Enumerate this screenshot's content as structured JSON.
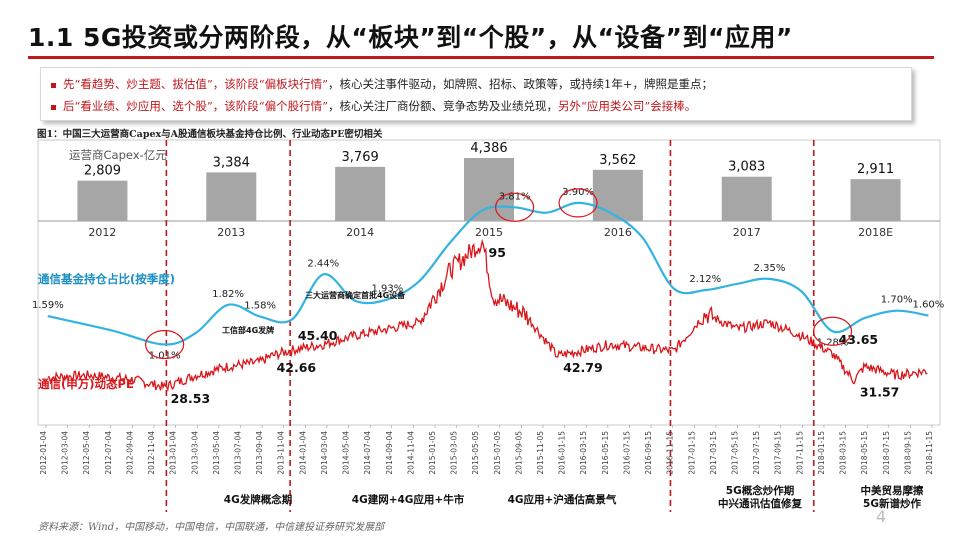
{
  "title": "1.1 5G投资或分两阶段，从“板块”到“个股”，从“设备”到“应用”",
  "bullets": [
    {
      "pre": "先“看趋势、炒主题、拔估值”，该阶段“偏板块行情”",
      "post": "，核心关注事件驱动，如牌照、招标、政策等，或持续1年+，牌照是重点；"
    },
    {
      "pre": "后“看业绩、炒应用、选个股”，该阶段“偏个股行情”",
      "post": "，核心关注厂商份额、竞争态势及业绩兑现，",
      "tail": "另外“应用类公司”会接棒。"
    }
  ],
  "figure_caption": "图1：中国三大运营商Capex与A股通信板块基金持仓比例、行业动态PE密切相关",
  "source_note": "资料来源：Wind，中国移动，中国电信，中国联通，中信建投证券研究发展部",
  "page_number": "4",
  "colors": {
    "accent": "#c0161c",
    "bar": "#a6a6a6",
    "holding_line": "#33b4e0",
    "pe_line": "#d9161b",
    "divider": "#c0161c"
  },
  "chart_data": [
    {
      "type": "bar",
      "ylabel": "运营商Capex-亿元",
      "categories": [
        "2012",
        "2013",
        "2014",
        "2015",
        "2016",
        "2017",
        "2018E"
      ],
      "values": [
        2809,
        3384,
        3769,
        4386,
        3562,
        3083,
        2911
      ],
      "value_labels": [
        "2,809",
        "3,384",
        "3,769",
        "4,386",
        "3,562",
        "3,083",
        "2,911"
      ]
    },
    {
      "type": "line",
      "series": [
        {
          "name": "通信基金持仓占比(按季度)",
          "x": [
            "2012-01",
            "2012-07",
            "2012-12",
            "2013-03",
            "2013-06",
            "2013-09",
            "2013-12",
            "2014-03",
            "2014-06",
            "2014-09",
            "2014-12",
            "2015-03",
            "2015-06",
            "2015-09",
            "2015-12",
            "2016-03",
            "2016-06",
            "2016-09",
            "2016-12",
            "2017-03",
            "2017-06",
            "2017-09",
            "2017-12",
            "2018-03",
            "2018-06",
            "2018-09",
            "2018-12"
          ],
          "values": [
            1.59,
            1.3,
            1.01,
            1.25,
            1.82,
            1.58,
            1.52,
            2.44,
            1.9,
            1.93,
            2.3,
            3.1,
            3.75,
            3.81,
            3.7,
            3.9,
            3.7,
            3.2,
            2.15,
            2.12,
            2.25,
            2.35,
            2.1,
            1.28,
            1.55,
            1.7,
            1.6
          ],
          "point_labels": [
            {
              "x": "2012-01",
              "text": "1.59%"
            },
            {
              "x": "2012-12",
              "text": "1.01%"
            },
            {
              "x": "2013-06",
              "text": "1.82%"
            },
            {
              "x": "2013-09",
              "text": "1.58%"
            },
            {
              "x": "2014-03",
              "text": "2.44%"
            },
            {
              "x": "2014-09",
              "text": "1.93%"
            },
            {
              "x": "2015-09",
              "text": "3.81%"
            },
            {
              "x": "2016-03",
              "text": "3.90%"
            },
            {
              "x": "2017-03",
              "text": "2.12%"
            },
            {
              "x": "2017-09",
              "text": "2.35%"
            },
            {
              "x": "2018-03",
              "text": "1.28%"
            },
            {
              "x": "2018-09",
              "text": "1.70%"
            },
            {
              "x": "2018-12",
              "text": "1.60%"
            }
          ]
        },
        {
          "name": "通信(申万)动态PE",
          "x": [
            "2012-01",
            "2012-05",
            "2012-09",
            "2012-12",
            "2013-03",
            "2013-06",
            "2013-09",
            "2013-10",
            "2013-12",
            "2014-03",
            "2014-06",
            "2014-09",
            "2014-12",
            "2015-03",
            "2015-06",
            "2015-07",
            "2015-10",
            "2016-01",
            "2016-06",
            "2016-12",
            "2017-03",
            "2017-06",
            "2017-09",
            "2017-12",
            "2018-03",
            "2018-05",
            "2018-06",
            "2018-09",
            "2018-12"
          ],
          "values": [
            33,
            34,
            32,
            28.53,
            34,
            38,
            40,
            42.66,
            45.4,
            48,
            52,
            55,
            58,
            82,
            95,
            70,
            62,
            42.79,
            48,
            45,
            62,
            55,
            58,
            52,
            43.65,
            31.57,
            38,
            34,
            36
          ],
          "point_labels": [
            {
              "x": "2012-12",
              "text": "28.53"
            },
            {
              "x": "2013-10",
              "text": "42.66"
            },
            {
              "x": "2013-12",
              "text": "45.40"
            },
            {
              "x": "2015-06",
              "text": "95"
            },
            {
              "x": "2016-01",
              "text": "42.79"
            },
            {
              "x": "2018-03",
              "text": "43.65"
            },
            {
              "x": "2018-05",
              "text": "31.57"
            }
          ]
        }
      ],
      "x_tick_labels": [
        "2012-01-04",
        "2012-03-04",
        "2012-05-04",
        "2012-07-04",
        "2012-09-04",
        "2012-11-04",
        "2013-01-04",
        "2013-03-04",
        "2013-05-04",
        "2013-07-04",
        "2013-09-04",
        "2013-11-04",
        "2014-01-04",
        "2014-03-04",
        "2014-05-04",
        "2014-07-04",
        "2014-09-04",
        "2014-11-04",
        "2015-01-05",
        "2015-03-05",
        "2015-05-05",
        "2015-07-05",
        "2015-09-05",
        "2015-11-05",
        "2016-01-15",
        "2016-03-15",
        "2016-05-15",
        "2016-07-15",
        "2016-09-15",
        "2016-11-15",
        "2017-01-15",
        "2017-03-15",
        "2017-05-15",
        "2017-07-15",
        "2017-09-15",
        "2017-11-15",
        "2018-01-15",
        "2018-03-15",
        "2018-05-15",
        "2018-07-15",
        "2018-09-15",
        "2018-11-15"
      ],
      "annotations": [
        "工信部4G发牌",
        "三大运营商确定首批4G设备"
      ],
      "phases": [
        "4G发牌概念期",
        "4G建网+4G应用+牛市",
        "4G应用+沪通估高景气",
        "5G概念炒作期\n中兴通讯估值修复",
        "中美贸易摩擦\n5G新谱炒作"
      ]
    }
  ]
}
